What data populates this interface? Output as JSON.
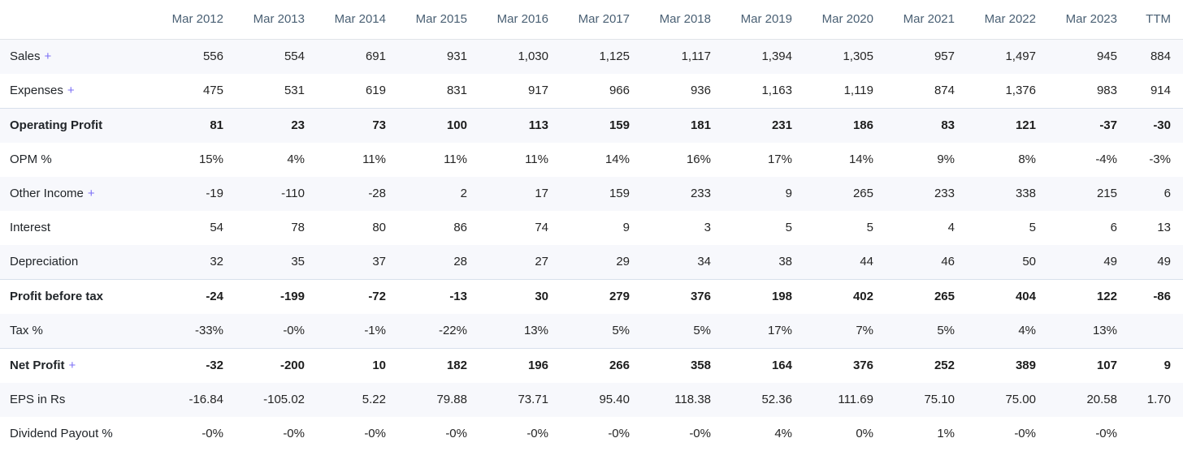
{
  "table": {
    "plus_symbol": "+",
    "columns": [
      "",
      "Mar 2012",
      "Mar 2013",
      "Mar 2014",
      "Mar 2015",
      "Mar 2016",
      "Mar 2017",
      "Mar 2018",
      "Mar 2019",
      "Mar 2020",
      "Mar 2021",
      "Mar 2022",
      "Mar 2023",
      "TTM"
    ],
    "rows": [
      {
        "label": "Sales",
        "plus": true,
        "bold": false,
        "values": [
          "556",
          "554",
          "691",
          "931",
          "1,030",
          "1,125",
          "1,117",
          "1,394",
          "1,305",
          "957",
          "1,497",
          "945",
          "884"
        ]
      },
      {
        "label": "Expenses",
        "plus": true,
        "bold": false,
        "values": [
          "475",
          "531",
          "619",
          "831",
          "917",
          "966",
          "936",
          "1,163",
          "1,119",
          "874",
          "1,376",
          "983",
          "914"
        ]
      },
      {
        "label": "Operating Profit",
        "plus": false,
        "bold": true,
        "values": [
          "81",
          "23",
          "73",
          "100",
          "113",
          "159",
          "181",
          "231",
          "186",
          "83",
          "121",
          "-37",
          "-30"
        ]
      },
      {
        "label": "OPM %",
        "plus": false,
        "bold": false,
        "values": [
          "15%",
          "4%",
          "11%",
          "11%",
          "11%",
          "14%",
          "16%",
          "17%",
          "14%",
          "9%",
          "8%",
          "-4%",
          "-3%"
        ]
      },
      {
        "label": "Other Income",
        "plus": true,
        "bold": false,
        "values": [
          "-19",
          "-110",
          "-28",
          "2",
          "17",
          "159",
          "233",
          "9",
          "265",
          "233",
          "338",
          "215",
          "6"
        ]
      },
      {
        "label": "Interest",
        "plus": false,
        "bold": false,
        "values": [
          "54",
          "78",
          "80",
          "86",
          "74",
          "9",
          "3",
          "5",
          "5",
          "4",
          "5",
          "6",
          "13"
        ]
      },
      {
        "label": "Depreciation",
        "plus": false,
        "bold": false,
        "values": [
          "32",
          "35",
          "37",
          "28",
          "27",
          "29",
          "34",
          "38",
          "44",
          "46",
          "50",
          "49",
          "49"
        ]
      },
      {
        "label": "Profit before tax",
        "plus": false,
        "bold": true,
        "values": [
          "-24",
          "-199",
          "-72",
          "-13",
          "30",
          "279",
          "376",
          "198",
          "402",
          "265",
          "404",
          "122",
          "-86"
        ]
      },
      {
        "label": "Tax %",
        "plus": false,
        "bold": false,
        "values": [
          "-33%",
          "-0%",
          "-1%",
          "-22%",
          "13%",
          "5%",
          "5%",
          "17%",
          "7%",
          "5%",
          "4%",
          "13%",
          ""
        ]
      },
      {
        "label": "Net Profit",
        "plus": true,
        "bold": true,
        "values": [
          "-32",
          "-200",
          "10",
          "182",
          "196",
          "266",
          "358",
          "164",
          "376",
          "252",
          "389",
          "107",
          "9"
        ]
      },
      {
        "label": "EPS in Rs",
        "plus": false,
        "bold": false,
        "values": [
          "-16.84",
          "-105.02",
          "5.22",
          "79.88",
          "73.71",
          "95.40",
          "118.38",
          "52.36",
          "111.69",
          "75.10",
          "75.00",
          "20.58",
          "1.70"
        ]
      },
      {
        "label": "Dividend Payout %",
        "plus": false,
        "bold": false,
        "values": [
          "-0%",
          "-0%",
          "-0%",
          "-0%",
          "-0%",
          "-0%",
          "-0%",
          "4%",
          "0%",
          "1%",
          "-0%",
          "-0%",
          ""
        ]
      }
    ],
    "colors": {
      "header_text": "#4a6074",
      "body_text": "#252525",
      "link_accent": "#7b6ef6",
      "stripe_bg": "#f7f8fc",
      "section_border": "#d8e0ec"
    }
  }
}
